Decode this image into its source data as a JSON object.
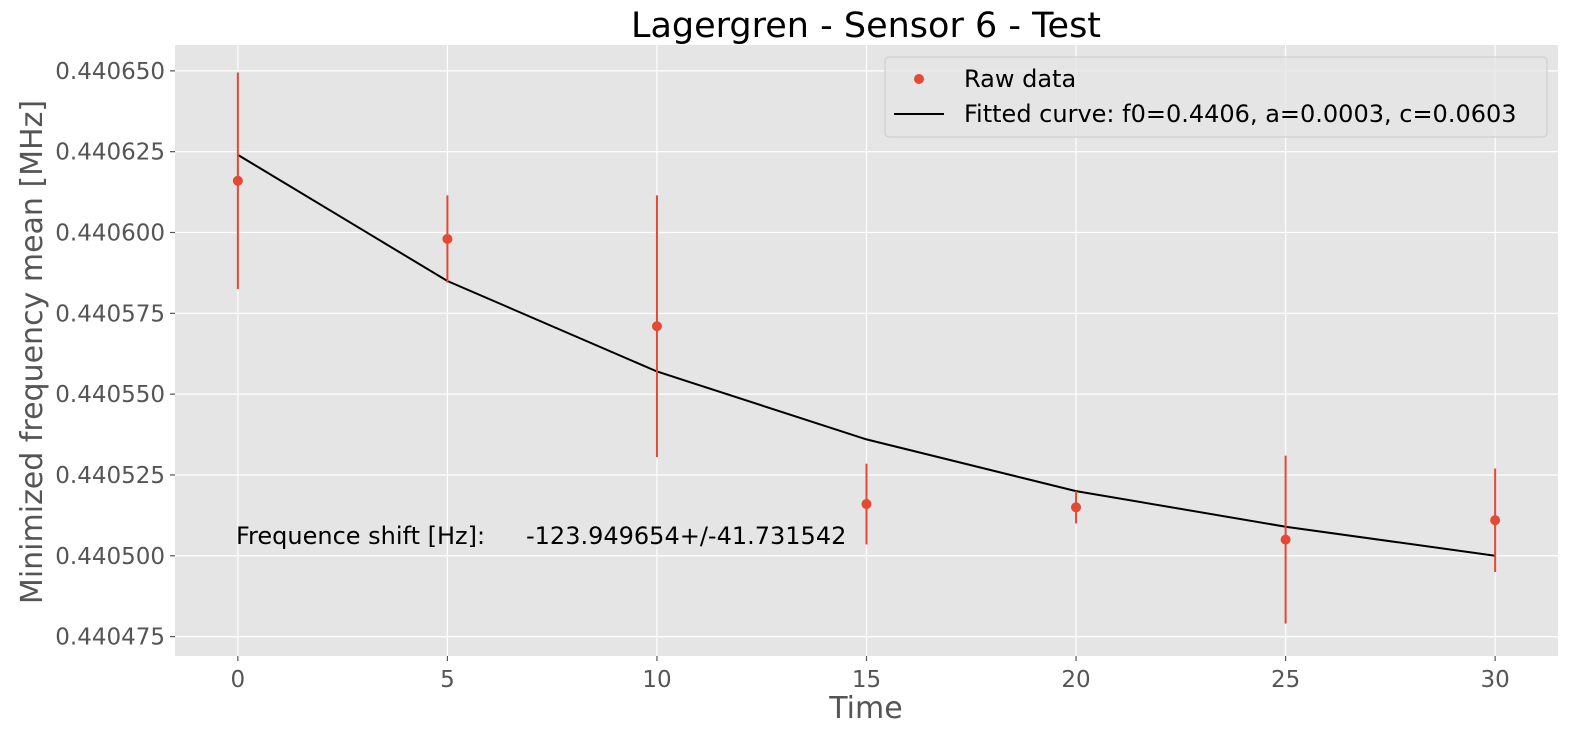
{
  "chart_data": {
    "type": "scatter",
    "title": "Lagergren - Sensor 6  - Test",
    "xlabel": "Time",
    "ylabel": "Minimized frequency mean [MHz]",
    "xlim": [
      -1.5,
      31.5
    ],
    "ylim": [
      0.440469,
      0.440658
    ],
    "xticks": [
      0,
      5,
      10,
      15,
      20,
      25,
      30
    ],
    "yticks": [
      0.440475,
      0.4405,
      0.440525,
      0.44055,
      0.440575,
      0.4406,
      0.440625,
      0.44065
    ],
    "ytick_labels": [
      "0.440475",
      "0.440500",
      "0.440525",
      "0.440550",
      "0.440575",
      "0.440600",
      "0.440625",
      "0.440650"
    ],
    "grid": true,
    "legend_position": "top-right",
    "series": [
      {
        "name": "Raw data",
        "kind": "errorbar",
        "color": "#E24A33",
        "x": [
          0,
          5,
          10,
          15,
          20,
          25,
          30
        ],
        "y": [
          0.440616,
          0.440598,
          0.440571,
          0.440516,
          0.440515,
          0.440505,
          0.440511
        ],
        "err": [
          3.35e-05,
          1.35e-05,
          4.05e-05,
          1.25e-05,
          5e-06,
          2.6e-05,
          1.6e-05
        ]
      },
      {
        "name": "Fitted curve: f0=0.4406, a=0.0003, c=0.0603",
        "kind": "line",
        "color": "#000000",
        "x": [
          0,
          5,
          10,
          15,
          20,
          25,
          30
        ],
        "y": [
          0.440624,
          0.440585,
          0.440557,
          0.440536,
          0.44052,
          0.440509,
          0.4405
        ]
      }
    ],
    "annotation": {
      "label": "Frequence shift [Hz]:",
      "value": "-123.949654+/-41.731542"
    },
    "colors": {
      "plot_background": "#E5E5E5",
      "grid": "#FFFFFF",
      "data": "#E24A33",
      "fit": "#000000"
    }
  }
}
